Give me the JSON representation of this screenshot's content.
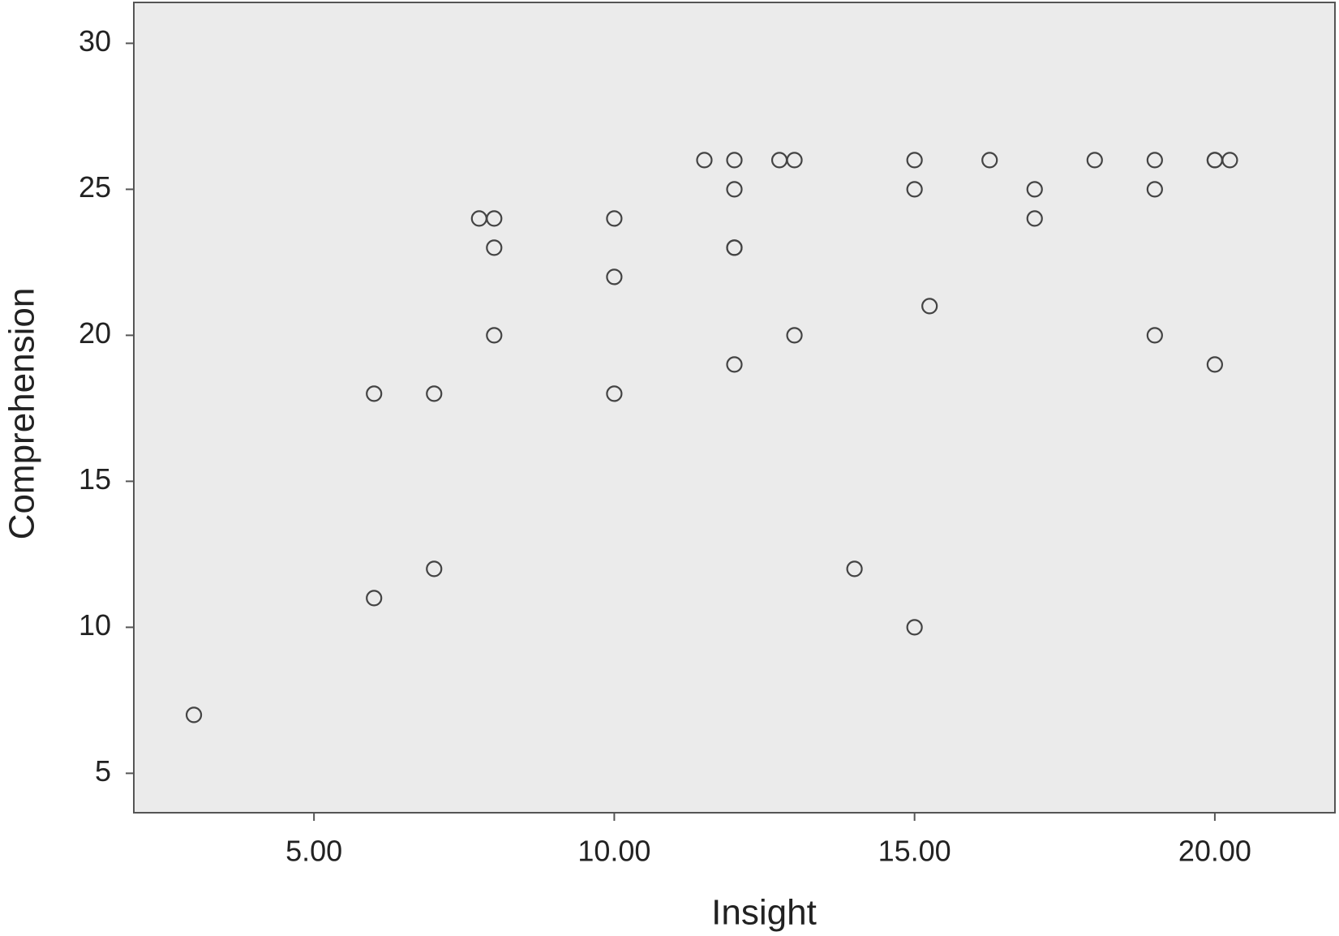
{
  "chart_data": {
    "type": "scatter",
    "x_label": "Insight",
    "y_label": "Comprehension",
    "xlim": [
      2,
      22
    ],
    "ylim": [
      3.65,
      31.4
    ],
    "xticks": [
      {
        "value": 5,
        "label": "5.00"
      },
      {
        "value": 10,
        "label": "10.00"
      },
      {
        "value": 15,
        "label": "15.00"
      },
      {
        "value": 20,
        "label": "20.00"
      }
    ],
    "yticks": [
      5,
      10,
      15,
      20,
      25,
      30
    ],
    "color": "#444444",
    "series": [
      {
        "x": [
          3,
          6,
          6,
          7,
          7,
          7.75,
          8,
          8,
          8,
          10,
          10,
          10,
          11.5,
          12,
          12,
          12,
          12,
          12,
          12.75,
          13,
          13,
          14,
          15,
          15,
          15,
          15.25,
          16.25,
          17,
          17,
          18,
          19,
          19,
          19,
          20,
          20,
          20.25,
          20
        ],
        "values": [
          7,
          18,
          11,
          18,
          12,
          24,
          24,
          23,
          20,
          24,
          22,
          18,
          26,
          26,
          25,
          23,
          23,
          19,
          26,
          26,
          20,
          12,
          26,
          25,
          10,
          21,
          26,
          25,
          24,
          26,
          26,
          25,
          20,
          26,
          26,
          26,
          19
        ]
      }
    ]
  }
}
